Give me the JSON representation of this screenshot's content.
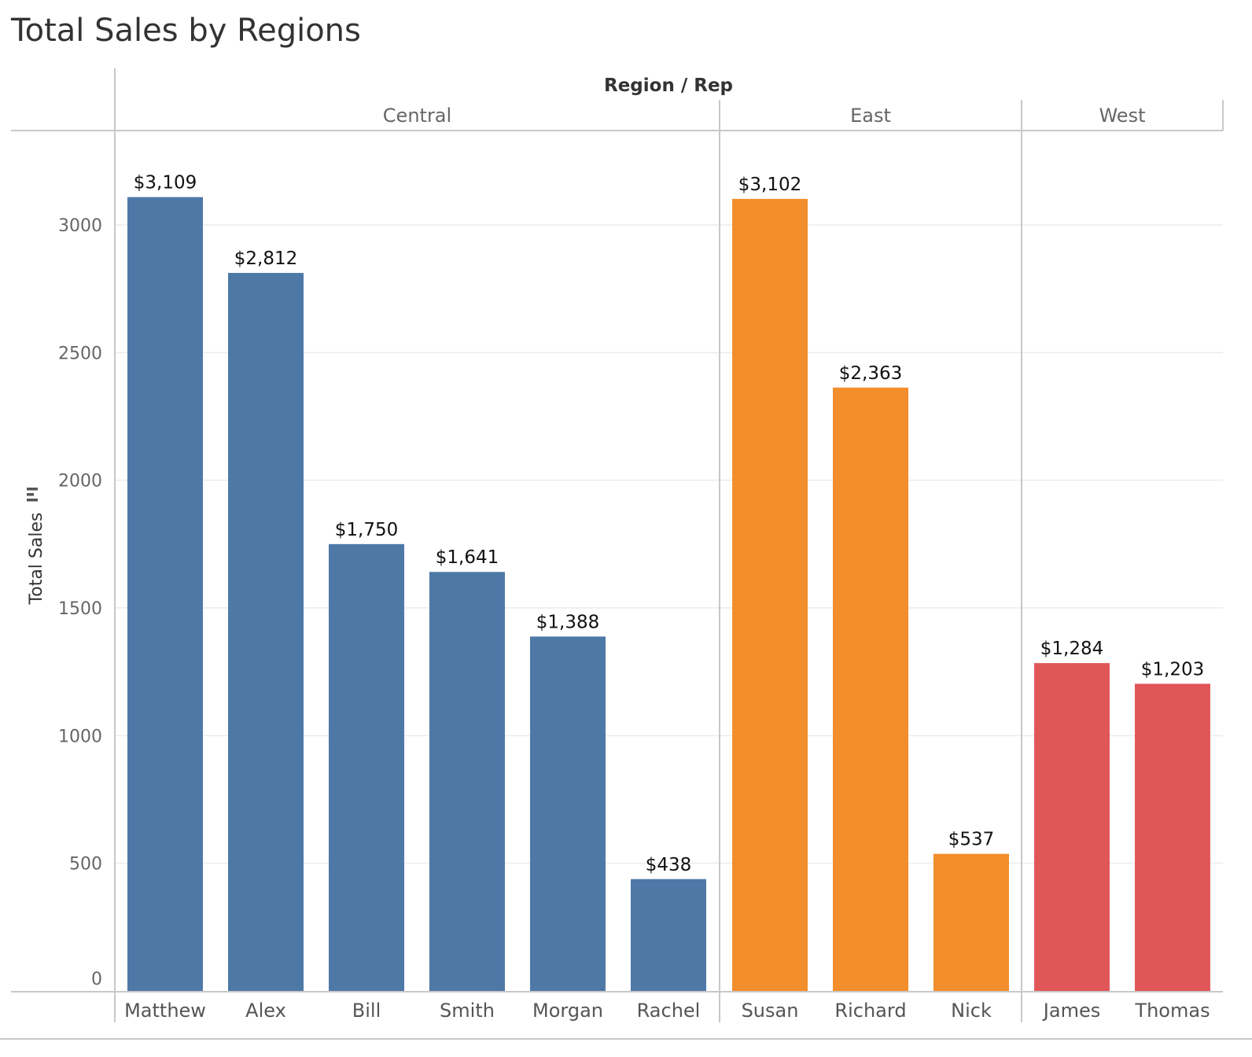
{
  "chart_data": {
    "type": "bar",
    "title": "Total Sales by Regions",
    "header_label": "Region  /  Rep",
    "ylabel": "Total Sales",
    "xlabel": "",
    "ylim": [
      0,
      3300
    ],
    "yticks": [
      0,
      500,
      1000,
      1500,
      2000,
      2500,
      3000
    ],
    "grid": true,
    "groups": [
      {
        "region": "Central",
        "color": "#4e79a7",
        "bars": [
          {
            "rep": "Matthew",
            "value": 3109,
            "label": "$3,109"
          },
          {
            "rep": "Alex",
            "value": 2812,
            "label": "$2,812"
          },
          {
            "rep": "Bill",
            "value": 1750,
            "label": "$1,750"
          },
          {
            "rep": "Smith",
            "value": 1641,
            "label": "$1,641"
          },
          {
            "rep": "Morgan",
            "value": 1388,
            "label": "$1,388"
          },
          {
            "rep": "Rachel",
            "value": 438,
            "label": "$438"
          }
        ]
      },
      {
        "region": "East",
        "color": "#f28e2b",
        "bars": [
          {
            "rep": "Susan",
            "value": 3102,
            "label": "$3,102"
          },
          {
            "rep": "Richard",
            "value": 2363,
            "label": "$2,363"
          },
          {
            "rep": "Nick",
            "value": 537,
            "label": "$537"
          }
        ]
      },
      {
        "region": "West",
        "color": "#e15759",
        "bars": [
          {
            "rep": "James",
            "value": 1284,
            "label": "$1,284"
          },
          {
            "rep": "Thomas",
            "value": 1203,
            "label": "$1,203"
          }
        ]
      }
    ]
  }
}
